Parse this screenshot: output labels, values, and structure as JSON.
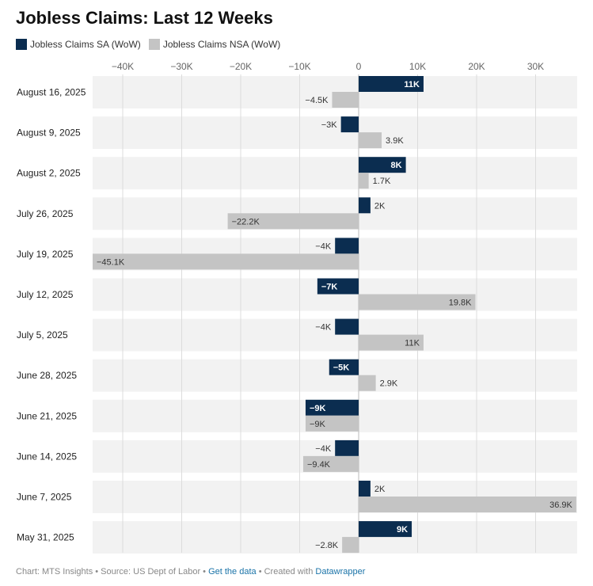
{
  "title": "Jobless Claims: Last 12 Weeks",
  "legend": [
    {
      "name": "Jobless Claims SA (WoW)",
      "color": "#0b2d50"
    },
    {
      "name": "Jobless Claims NSA (WoW)",
      "color": "#c4c4c4"
    }
  ],
  "footer": {
    "prefix": "Chart: MTS Insights • Source: US Dept of Labor • ",
    "get_data": "Get the data",
    "middle": " • Created with ",
    "tool": "Datawrapper"
  },
  "chart_data": {
    "type": "bar",
    "orientation": "horizontal",
    "title": "Jobless Claims: Last 12 Weeks",
    "categories": [
      "August 16, 2025",
      "August 9, 2025",
      "August 2, 2025",
      "July 26, 2025",
      "July 19, 2025",
      "July 12, 2025",
      "July 5, 2025",
      "June 28, 2025",
      "June 21, 2025",
      "June 14, 2025",
      "June 7, 2025",
      "May 31, 2025"
    ],
    "x_ticks": [
      -40000,
      -30000,
      -20000,
      -10000,
      0,
      10000,
      20000,
      30000
    ],
    "x_tick_labels": [
      "−40K",
      "−30K",
      "−20K",
      "−10K",
      "0",
      "10K",
      "20K",
      "30K"
    ],
    "xlim": [
      -45100,
      36900
    ],
    "grid": true,
    "legend_position": "top-left",
    "series": [
      {
        "name": "Jobless Claims SA (WoW)",
        "color": "#0b2d50",
        "values": [
          11000,
          -3000,
          8000,
          2000,
          -4000,
          -7000,
          -4000,
          -5000,
          -9000,
          -4000,
          2000,
          9000
        ],
        "labels": [
          "11K",
          "−3K",
          "8K",
          "2K",
          "−4K",
          "−7K",
          "−4K",
          "−5K",
          "−9K",
          "−4K",
          "2K",
          "9K"
        ]
      },
      {
        "name": "Jobless Claims NSA (WoW)",
        "color": "#c4c4c4",
        "values": [
          -4500,
          3900,
          1700,
          -22200,
          -45100,
          19800,
          11000,
          2900,
          -9000,
          -9400,
          36900,
          -2800
        ],
        "labels": [
          "−4.5K",
          "3.9K",
          "1.7K",
          "−22.2K",
          "−45.1K",
          "19.8K",
          "11K",
          "2.9K",
          "−9K",
          "−9.4K",
          "36.9K",
          "−2.8K"
        ]
      }
    ]
  }
}
